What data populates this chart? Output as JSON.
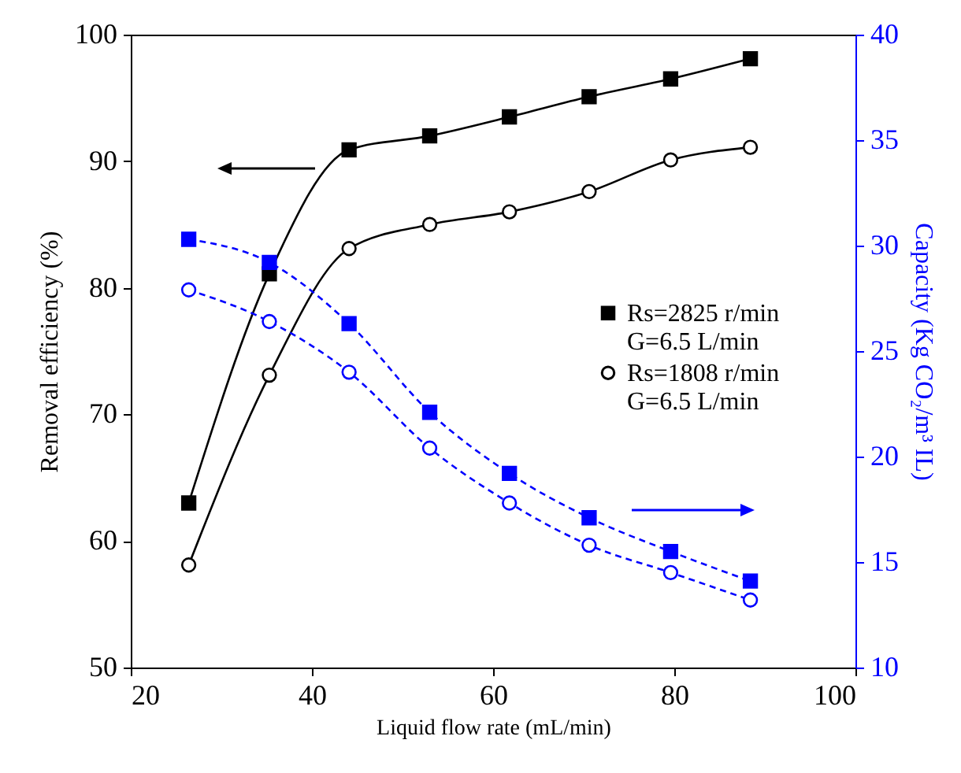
{
  "chart_data": {
    "type": "line",
    "xlabel": "Liquid flow rate (mL/min)",
    "ylabel": "Removal efficiency (%)",
    "y2label": "Capacity (Kg CO₂/m³ IL)",
    "x": [
      26.4,
      35.3,
      44.1,
      53,
      61.8,
      70.6,
      79.6,
      88.4
    ],
    "xlim": [
      20,
      100
    ],
    "xticks": [
      20,
      40,
      60,
      80,
      100
    ],
    "ylim": [
      50,
      100
    ],
    "yticks": [
      50,
      60,
      70,
      80,
      90,
      100
    ],
    "y2lim": [
      10,
      40
    ],
    "y2ticks": [
      10,
      15,
      20,
      25,
      30,
      35,
      40
    ],
    "series": [
      {
        "name": "Rs=2825 r/min\nG=6.5 L/min",
        "color": "#000000",
        "marker": "square",
        "line_style": "solid",
        "values": [
          63.0,
          81.1,
          90.9,
          92.0,
          93.5,
          95.1,
          96.5,
          98.1
        ]
      },
      {
        "name": "Rs=1808 r/min\nG=6.5 L/min",
        "color": "#000000",
        "marker": "circle",
        "line_style": "solid",
        "values": [
          58.1,
          73.1,
          83.1,
          85.0,
          86.0,
          87.6,
          90.1,
          91.1
        ]
      },
      {
        "axis": "y2",
        "color": "#0000ff",
        "marker": "square",
        "line_style": "dashed",
        "values": [
          30.3,
          29.2,
          26.3,
          22.1,
          19.2,
          17.1,
          15.5,
          14.1
        ]
      },
      {
        "axis": "y2",
        "color": "#0000ff",
        "marker": "circle",
        "line_style": "dashed",
        "values": [
          27.9,
          26.4,
          24.0,
          20.4,
          17.8,
          15.8,
          14.5,
          13.2
        ]
      }
    ],
    "legend": "right",
    "grid": false
  }
}
